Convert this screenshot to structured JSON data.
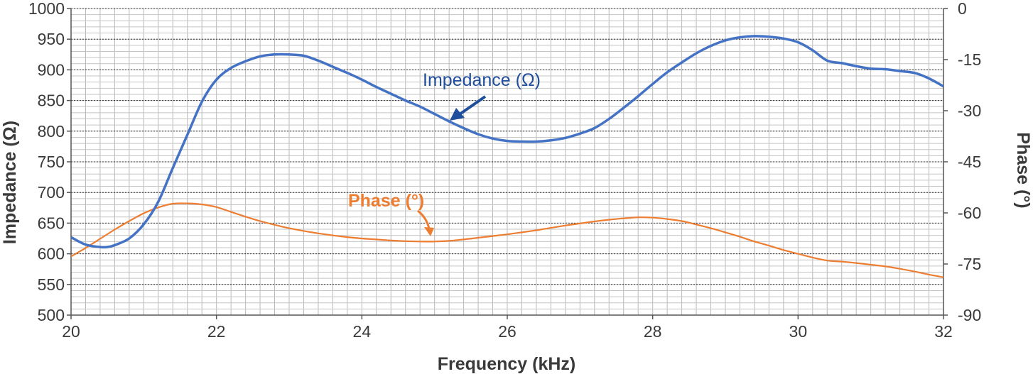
{
  "chart_data": {
    "type": "line",
    "xlabel": "Frequency (kHz)",
    "ylabel": "Impedance (Ω)",
    "y2label": "Phase (°)",
    "xlim": [
      20,
      32
    ],
    "ylim": [
      500,
      1000
    ],
    "y2lim": [
      -90,
      0
    ],
    "x_ticks": [
      "20",
      "22",
      "24",
      "26",
      "28",
      "30",
      "32"
    ],
    "y_ticks": [
      "500",
      "550",
      "600",
      "650",
      "700",
      "750",
      "800",
      "850",
      "900",
      "950",
      "1000"
    ],
    "y2_ticks": [
      "-90",
      "-75",
      "-60",
      "-45",
      "-30",
      "-15",
      "0"
    ],
    "grid": true,
    "colors": {
      "impedance": "#4472c4",
      "phase": "#ed7d31",
      "impedance_arrow": "#1f4e9c",
      "phase_arrow": "#ed7d31"
    },
    "series": [
      {
        "name": "Impedance (Ω)",
        "axis": "left",
        "x": [
          20.0,
          20.2,
          20.4,
          20.5,
          20.6,
          20.8,
          21.0,
          21.2,
          21.4,
          21.6,
          21.8,
          22.0,
          22.2,
          22.4,
          22.6,
          22.8,
          23.0,
          23.2,
          23.4,
          23.6,
          23.8,
          24.0,
          24.2,
          24.4,
          24.6,
          24.8,
          25.0,
          25.2,
          25.4,
          25.6,
          25.8,
          26.0,
          26.2,
          26.4,
          26.6,
          26.8,
          27.0,
          27.2,
          27.4,
          27.6,
          27.8,
          28.0,
          28.2,
          28.4,
          28.6,
          28.8,
          29.0,
          29.2,
          29.4,
          29.6,
          29.8,
          30.0,
          30.2,
          30.4,
          30.6,
          30.8,
          31.0,
          31.2,
          31.4,
          31.6,
          31.8,
          32.0
        ],
        "values": [
          627,
          615,
          611,
          611,
          614,
          625,
          648,
          685,
          740,
          794,
          848,
          884,
          903,
          914,
          922,
          925,
          925,
          923,
          915,
          905,
          895,
          884,
          872,
          861,
          850,
          840,
          828,
          816,
          805,
          795,
          788,
          784,
          783,
          783,
          785,
          789,
          796,
          805,
          820,
          838,
          857,
          877,
          896,
          912,
          927,
          939,
          948,
          953,
          955,
          954,
          951,
          945,
          932,
          915,
          911,
          906,
          902,
          901,
          898,
          895,
          886,
          873
        ]
      },
      {
        "name": "Phase (°)",
        "axis": "right",
        "x": [
          20.0,
          20.2,
          20.4,
          20.6,
          20.8,
          21.0,
          21.2,
          21.4,
          21.6,
          21.8,
          22.0,
          22.2,
          22.4,
          22.6,
          22.8,
          23.0,
          23.2,
          23.4,
          23.6,
          23.8,
          24.0,
          24.2,
          24.4,
          24.6,
          24.8,
          25.0,
          25.2,
          25.4,
          25.6,
          25.8,
          26.0,
          26.2,
          26.4,
          26.6,
          26.8,
          27.0,
          27.2,
          27.4,
          27.6,
          27.8,
          28.0,
          28.2,
          28.4,
          28.6,
          28.8,
          29.0,
          29.2,
          29.4,
          29.6,
          29.8,
          30.0,
          30.2,
          30.4,
          30.6,
          30.8,
          31.0,
          31.2,
          31.4,
          31.6,
          31.8,
          32.0
        ],
        "values": [
          -72.8,
          -70.3,
          -67.6,
          -64.9,
          -62.4,
          -60.1,
          -58.4,
          -57.3,
          -57.2,
          -57.5,
          -58.3,
          -59.7,
          -61.1,
          -62.4,
          -63.5,
          -64.5,
          -65.3,
          -66.0,
          -66.6,
          -67.1,
          -67.5,
          -67.8,
          -68.1,
          -68.3,
          -68.4,
          -68.4,
          -68.2,
          -67.8,
          -67.3,
          -66.8,
          -66.3,
          -65.7,
          -65.1,
          -64.4,
          -63.7,
          -63.1,
          -62.5,
          -62.0,
          -61.6,
          -61.3,
          -61.4,
          -61.8,
          -62.4,
          -63.4,
          -64.5,
          -65.7,
          -67.0,
          -68.4,
          -69.6,
          -70.9,
          -72.0,
          -73.1,
          -74.0,
          -74.3,
          -74.7,
          -75.2,
          -75.7,
          -76.4,
          -77.2,
          -78.1,
          -78.9
        ]
      }
    ],
    "annotations": [
      {
        "text": "Impedance (Ω)",
        "series": "Impedance (Ω)"
      },
      {
        "text": "Phase (°)",
        "series": "Phase (°)"
      }
    ]
  }
}
